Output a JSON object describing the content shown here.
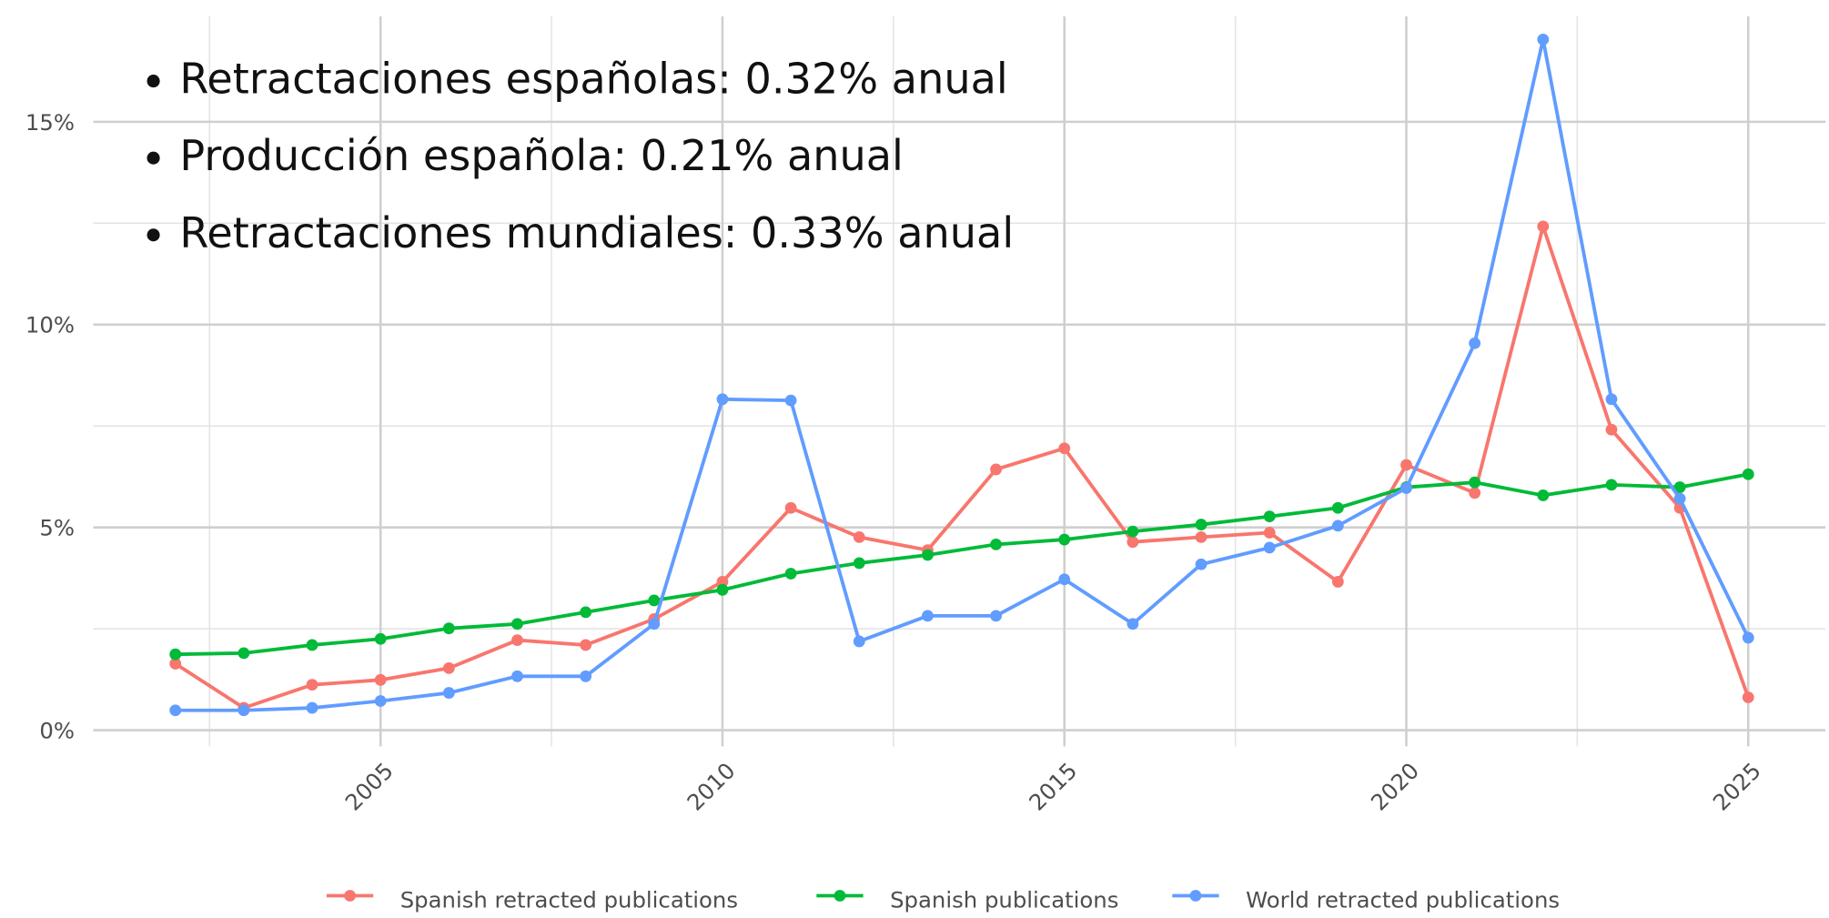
{
  "chart_data": {
    "type": "line",
    "annotations": [
      "Retractaciones españolas: 0.32% anual",
      "Producción española: 0.21% anual",
      "Retractaciones mundiales: 0.33% anual"
    ],
    "x": [
      2002,
      2003,
      2004,
      2005,
      2006,
      2007,
      2008,
      2009,
      2010,
      2011,
      2012,
      2013,
      2014,
      2015,
      2016,
      2017,
      2018,
      2019,
      2020,
      2021,
      2022,
      2023,
      2024,
      2025
    ],
    "series": [
      {
        "name": "Spanish retracted publications",
        "color": "#f8766d",
        "values": [
          1.64,
          0.55,
          1.12,
          1.24,
          1.53,
          2.22,
          2.1,
          2.74,
          3.66,
          5.48,
          4.76,
          4.44,
          6.43,
          6.95,
          4.64,
          4.76,
          4.87,
          3.66,
          6.54,
          5.85,
          12.42,
          7.41,
          5.48,
          0.81
        ]
      },
      {
        "name": "Spanish publications",
        "color": "#00ba38",
        "values": [
          1.87,
          1.9,
          2.1,
          2.25,
          2.51,
          2.62,
          2.91,
          3.2,
          3.46,
          3.86,
          4.12,
          4.32,
          4.58,
          4.7,
          4.9,
          5.07,
          5.27,
          5.48,
          5.99,
          6.11,
          5.79,
          6.05,
          5.99,
          6.31
        ]
      },
      {
        "name": "World retracted publications",
        "color": "#619cff",
        "values": [
          0.49,
          0.49,
          0.55,
          0.72,
          0.92,
          1.33,
          1.33,
          2.62,
          8.16,
          8.13,
          2.19,
          2.82,
          2.82,
          3.72,
          2.62,
          4.09,
          4.5,
          5.04,
          5.97,
          9.54,
          17.03,
          8.16,
          5.71,
          2.28
        ]
      }
    ],
    "xlim": [
      2000.8,
      2026.13
    ],
    "xticks": [
      2005,
      2010,
      2015,
      2020,
      2025
    ],
    "minor_xticks": [
      2002.5,
      2007.5,
      2012.5,
      2017.5,
      2022.5
    ],
    "ylim": [
      -0.4,
      17.6
    ],
    "yticks": [
      {
        "value": 0,
        "label": "0%"
      },
      {
        "value": 5,
        "label": "5%"
      },
      {
        "value": 10,
        "label": "10%"
      },
      {
        "value": 15,
        "label": "15%"
      }
    ],
    "minor_yticks": [
      2.5,
      7.5,
      12.5
    ],
    "grid": true,
    "legend": "bottom"
  }
}
